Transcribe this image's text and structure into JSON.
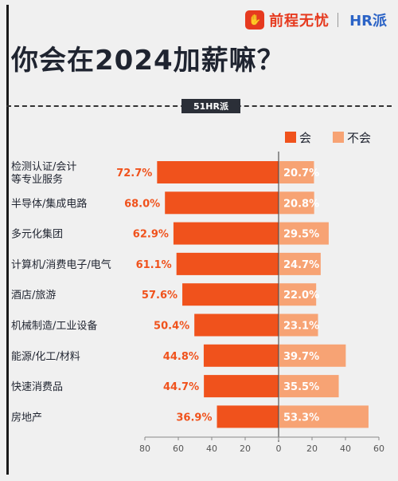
{
  "header": {
    "brand_name": "前程无忧",
    "brand_second": "HR派",
    "title": "你会在2024加薪嘛？",
    "tag": "51HR派"
  },
  "colors": {
    "series_yes": "#f0521c",
    "series_no": "#f7a374",
    "label_yes": "#f0521c",
    "text_dark": "#1f2430"
  },
  "chart_data": {
    "type": "bar",
    "orientation": "horizontal-diverging",
    "categories": [
      "检测认证/会计\n等专业服务",
      "半导体/集成电路",
      "多元化集团",
      "计算机/消费电子/电气",
      "酒店/旅游",
      "机械制造/工业设备",
      "能源/化工/材料",
      "快速消费品",
      "房地产"
    ],
    "series": [
      {
        "name": "会",
        "values": [
          72.7,
          68.0,
          62.9,
          61.1,
          57.6,
          50.4,
          44.8,
          44.7,
          36.9
        ],
        "labels": [
          "72.7%",
          "68.0%",
          "62.9%",
          "61.1%",
          "57.6%",
          "50.4%",
          "44.8%",
          "44.7%",
          "36.9%"
        ]
      },
      {
        "name": "不会",
        "values": [
          20.7,
          20.8,
          29.5,
          24.7,
          22.0,
          23.1,
          39.7,
          35.5,
          53.3
        ],
        "labels": [
          "20.7%",
          "20.8%",
          "29.5%",
          "24.7%",
          "22.0%",
          "23.1%",
          "39.7%",
          "35.5%",
          "53.3%"
        ]
      }
    ],
    "x_ticks": [
      "80",
      "60",
      "40",
      "20",
      "0",
      "20",
      "40",
      "60"
    ],
    "xlim": [
      -80,
      60
    ],
    "legend_position": "top-right",
    "grid": false
  }
}
